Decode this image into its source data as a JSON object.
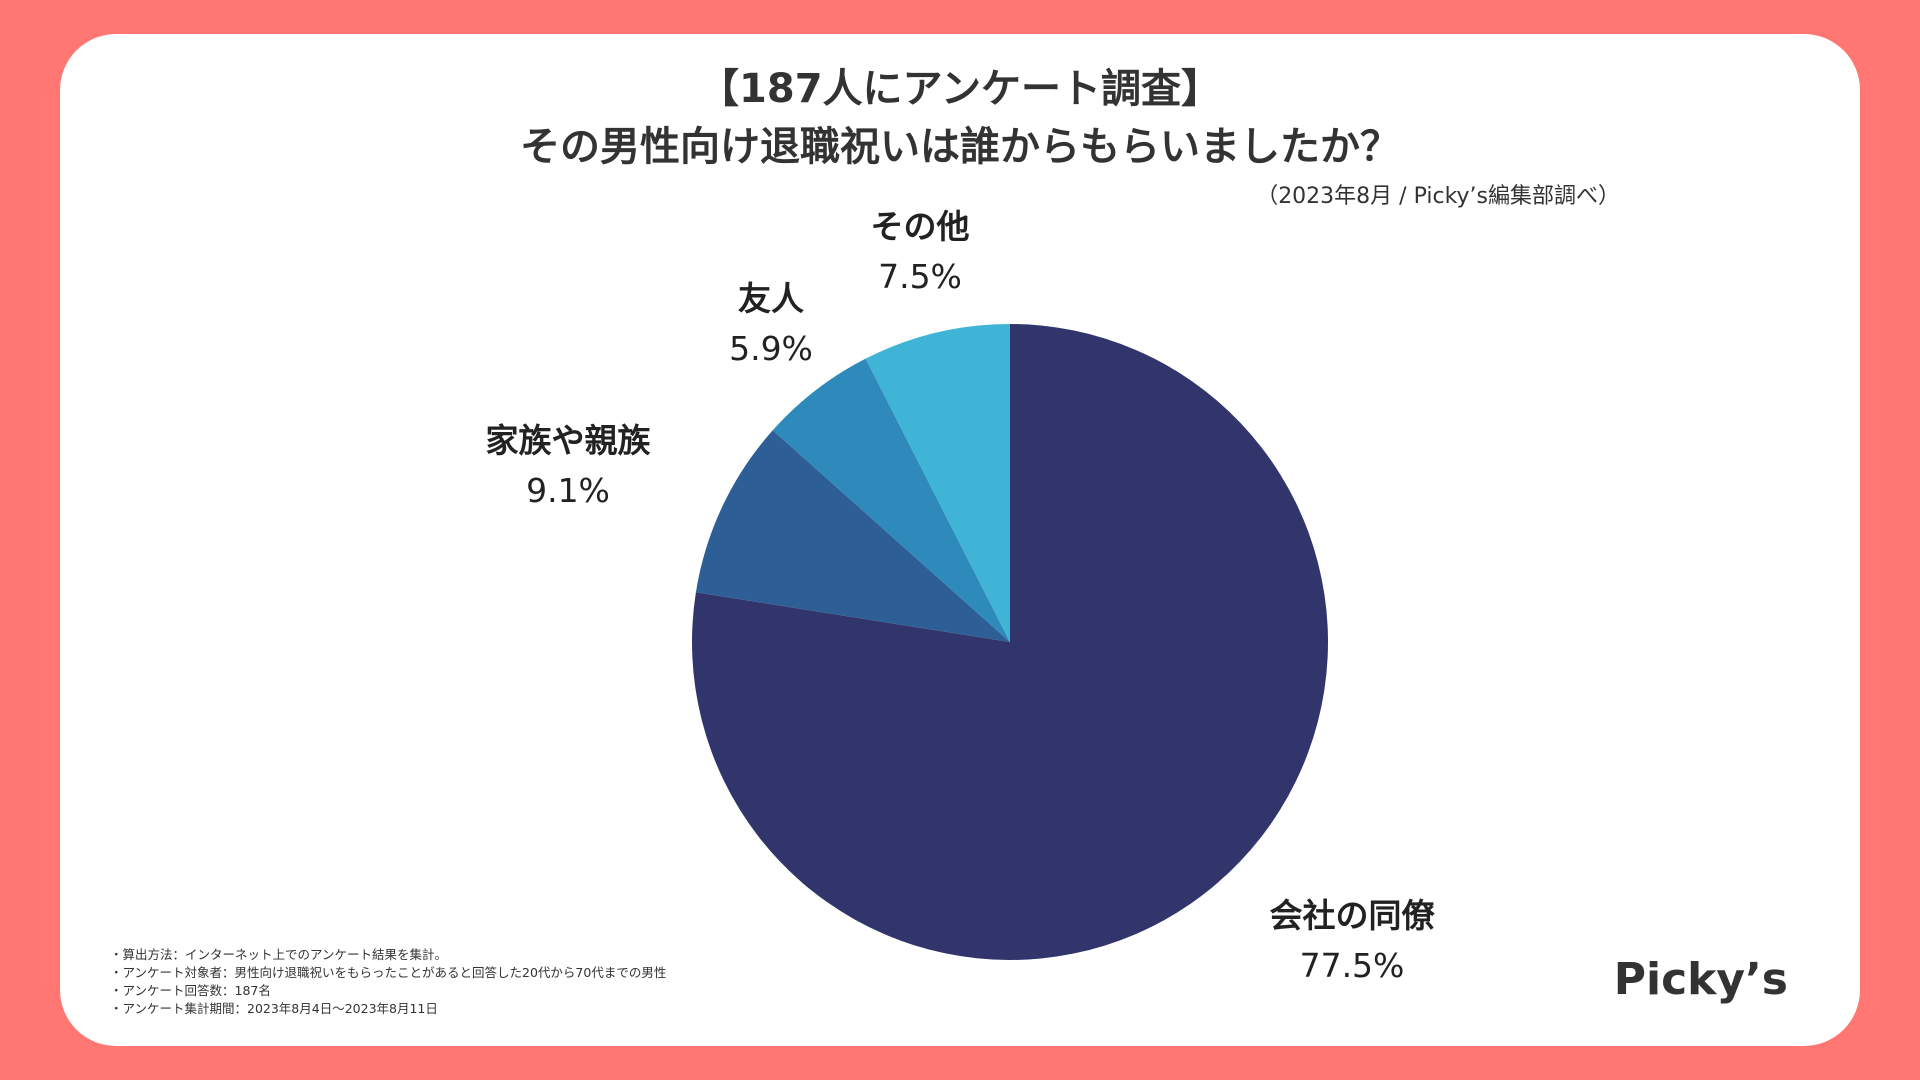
{
  "header": {
    "title_line1": "【187人にアンケート調査】",
    "title_line2": "その男性向け退職祝いは誰からもらいましたか？",
    "source": "（2023年8月 / Picky’s編集部調べ）"
  },
  "chart_data": {
    "type": "pie",
    "title": "その男性向け退職祝いは誰からもらいましたか？",
    "unit": "%",
    "slices": [
      {
        "label": "会社の同僚",
        "value": 77.5,
        "value_label": "77.5%",
        "color": "#31356B"
      },
      {
        "label": "家族や親族",
        "value": 9.1,
        "value_label": "9.1%",
        "color": "#2E5E96"
      },
      {
        "label": "友人",
        "value": 5.9,
        "value_label": "5.9%",
        "color": "#2E8ABA"
      },
      {
        "label": "その他",
        "value": 7.5,
        "value_label": "7.5%",
        "color": "#40B4D6"
      }
    ],
    "start": "12 o'clock",
    "direction": "clockwise",
    "legend": "none"
  },
  "notes": [
    "・算出方法：インターネット上でのアンケート結果を集計。",
    "・アンケート対象者：男性向け退職祝いをもらったことがあると回答した20代から70代までの男性",
    "・アンケート回答数：187名",
    "・アンケート集計期間：2023年8月4日〜2023年8月11日"
  ],
  "brand": {
    "logo_text": "Picky’s",
    "background_color": "#FF7672"
  }
}
